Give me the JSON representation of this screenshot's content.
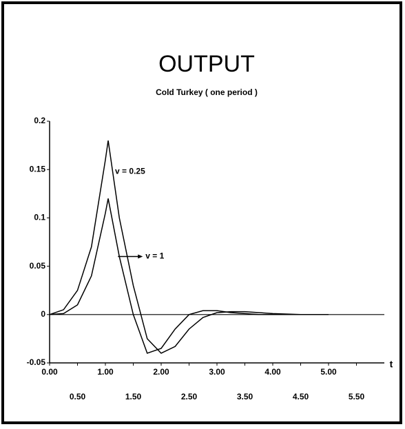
{
  "chart_data": {
    "type": "line",
    "title": "OUTPUT",
    "subtitle": "Cold Turkey ( one period )",
    "x_label": "t",
    "x": [
      0,
      0.25,
      0.5,
      0.75,
      1,
      1.05,
      1.25,
      1.5,
      1.75,
      2,
      2.25,
      2.5,
      2.75,
      3,
      3.25,
      3.5,
      3.75,
      4,
      4.5,
      5
    ],
    "series": [
      {
        "name": "v = 0.25",
        "color": "#000000",
        "values": [
          0,
          0.005,
          0.025,
          0.07,
          0.16,
          0.18,
          0.1,
          0.03,
          -0.025,
          -0.04,
          -0.033,
          -0.015,
          -0.003,
          0.002,
          0.003,
          0.003,
          0.002,
          0.001,
          0,
          0
        ]
      },
      {
        "name": "v = 1",
        "color": "#000000",
        "values": [
          0,
          0.001,
          0.01,
          0.04,
          0.105,
          0.12,
          0.06,
          0,
          -0.04,
          -0.035,
          -0.015,
          0,
          0.004,
          0.004,
          0.002,
          0.001,
          0,
          0,
          0,
          0
        ]
      }
    ],
    "xlim": [
      0,
      6
    ],
    "xticks": [
      {
        "value": 0,
        "label": "0.00"
      },
      {
        "value": 0.5,
        "label": "0.50"
      },
      {
        "value": 1,
        "label": "1.00"
      },
      {
        "value": 1.5,
        "label": "1.50"
      },
      {
        "value": 2,
        "label": "2.00"
      },
      {
        "value": 2.5,
        "label": "2.50"
      },
      {
        "value": 3,
        "label": "3.00"
      },
      {
        "value": 3.5,
        "label": "3.50"
      },
      {
        "value": 4,
        "label": "4.00"
      },
      {
        "value": 4.5,
        "label": "4.50"
      },
      {
        "value": 5,
        "label": "5.00"
      },
      {
        "value": 5.5,
        "label": "5.50"
      }
    ],
    "ylim": [
      -0.05,
      0.2
    ],
    "yticks": [
      -0.05,
      0,
      0.05,
      0.1,
      0.15,
      0.2
    ],
    "grid": false
  }
}
